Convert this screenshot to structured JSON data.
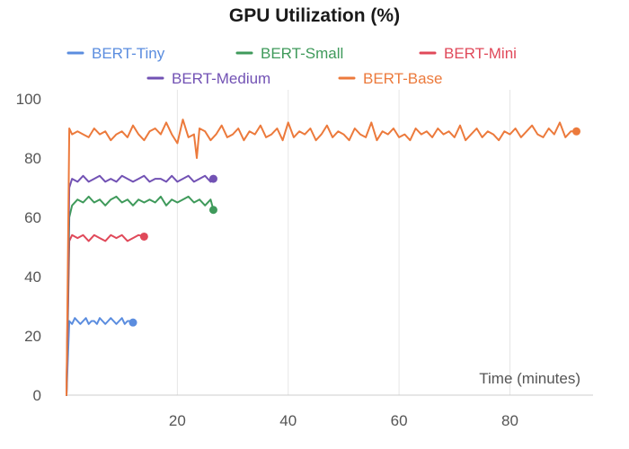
{
  "chart_data": {
    "type": "line",
    "title": "GPU Utilization (%)",
    "xlabel": "Time (minutes)",
    "ylabel": "",
    "xlim": [
      0,
      95
    ],
    "ylim": [
      0,
      100
    ],
    "xticks": [
      20,
      40,
      60,
      80
    ],
    "yticks": [
      0,
      20,
      40,
      60,
      80,
      100
    ],
    "grid": "vertical",
    "legend_position": "top",
    "series": [
      {
        "name": "BERT-Tiny",
        "color": "#5b8ddf",
        "x": [
          0,
          0.5,
          1,
          1.5,
          2,
          2.5,
          3,
          3.5,
          4,
          4.5,
          5,
          5.5,
          6,
          6.5,
          7,
          7.5,
          8,
          8.5,
          9,
          9.5,
          10,
          10.5,
          11,
          11.5,
          12
        ],
        "y": [
          0,
          25,
          24,
          26,
          25,
          24,
          25,
          26,
          24,
          25,
          25,
          24,
          26,
          25,
          24,
          25,
          26,
          25,
          24,
          25,
          26,
          24,
          25,
          25,
          24.5
        ],
        "end_marker": true
      },
      {
        "name": "BERT-Small",
        "color": "#3f9a5b",
        "x": [
          0,
          0.5,
          1,
          2,
          3,
          4,
          5,
          6,
          7,
          8,
          9,
          10,
          11,
          12,
          13,
          14,
          15,
          16,
          17,
          18,
          19,
          20,
          21,
          22,
          23,
          24,
          25,
          26,
          26.5
        ],
        "y": [
          0,
          60,
          64,
          66,
          65,
          67,
          65,
          66,
          64,
          66,
          67,
          65,
          66,
          64,
          66,
          65,
          66,
          65,
          67,
          64,
          66,
          65,
          66,
          67,
          65,
          66,
          64,
          66,
          62.5
        ],
        "end_marker": true
      },
      {
        "name": "BERT-Mini",
        "color": "#e0495a",
        "x": [
          0,
          0.5,
          1,
          2,
          3,
          4,
          5,
          6,
          7,
          8,
          9,
          10,
          11,
          12,
          13,
          14
        ],
        "y": [
          0,
          52,
          54,
          53,
          54,
          52,
          54,
          53,
          52,
          54,
          53,
          54,
          52,
          53,
          54,
          53.5
        ],
        "end_marker": true
      },
      {
        "name": "BERT-Medium",
        "color": "#7252b4",
        "x": [
          0,
          0.5,
          1,
          2,
          3,
          4,
          5,
          6,
          7,
          8,
          9,
          10,
          11,
          12,
          13,
          14,
          15,
          16,
          17,
          18,
          19,
          20,
          21,
          22,
          23,
          24,
          25,
          26,
          26.5
        ],
        "y": [
          0,
          70,
          73,
          72,
          74,
          72,
          73,
          74,
          72,
          73,
          72,
          74,
          73,
          72,
          73,
          74,
          72,
          73,
          73,
          72,
          74,
          72,
          73,
          74,
          72,
          73,
          74,
          72,
          73
        ],
        "end_marker": true
      },
      {
        "name": "BERT-Base",
        "color": "#ec7a3c",
        "x": [
          0,
          0.5,
          1,
          2,
          3,
          4,
          5,
          6,
          7,
          8,
          9,
          10,
          11,
          12,
          13,
          14,
          15,
          16,
          17,
          18,
          19,
          20,
          21,
          22,
          23,
          23.5,
          24,
          25,
          26,
          27,
          28,
          29,
          30,
          31,
          32,
          33,
          34,
          35,
          36,
          37,
          38,
          39,
          40,
          41,
          42,
          43,
          44,
          45,
          46,
          47,
          48,
          49,
          50,
          51,
          52,
          53,
          54,
          55,
          56,
          57,
          58,
          59,
          60,
          61,
          62,
          63,
          64,
          65,
          66,
          67,
          68,
          69,
          70,
          71,
          72,
          73,
          74,
          75,
          76,
          77,
          78,
          79,
          80,
          81,
          82,
          83,
          84,
          85,
          86,
          87,
          88,
          89,
          90,
          91,
          92
        ],
        "y": [
          0,
          90,
          88,
          89,
          88,
          87,
          90,
          88,
          89,
          86,
          88,
          89,
          87,
          91,
          88,
          86,
          89,
          90,
          88,
          92,
          88,
          85,
          93,
          87,
          88,
          80,
          90,
          89,
          86,
          88,
          91,
          87,
          88,
          90,
          86,
          89,
          88,
          91,
          87,
          88,
          90,
          86,
          92,
          87,
          89,
          88,
          90,
          86,
          88,
          91,
          87,
          89,
          88,
          86,
          90,
          88,
          87,
          92,
          86,
          89,
          88,
          90,
          87,
          88,
          86,
          90,
          88,
          89,
          87,
          90,
          88,
          89,
          87,
          91,
          86,
          88,
          90,
          87,
          89,
          88,
          86,
          89,
          88,
          90,
          87,
          89,
          91,
          88,
          87,
          90,
          88,
          92,
          87,
          89,
          89
        ],
        "end_marker": true
      }
    ]
  }
}
